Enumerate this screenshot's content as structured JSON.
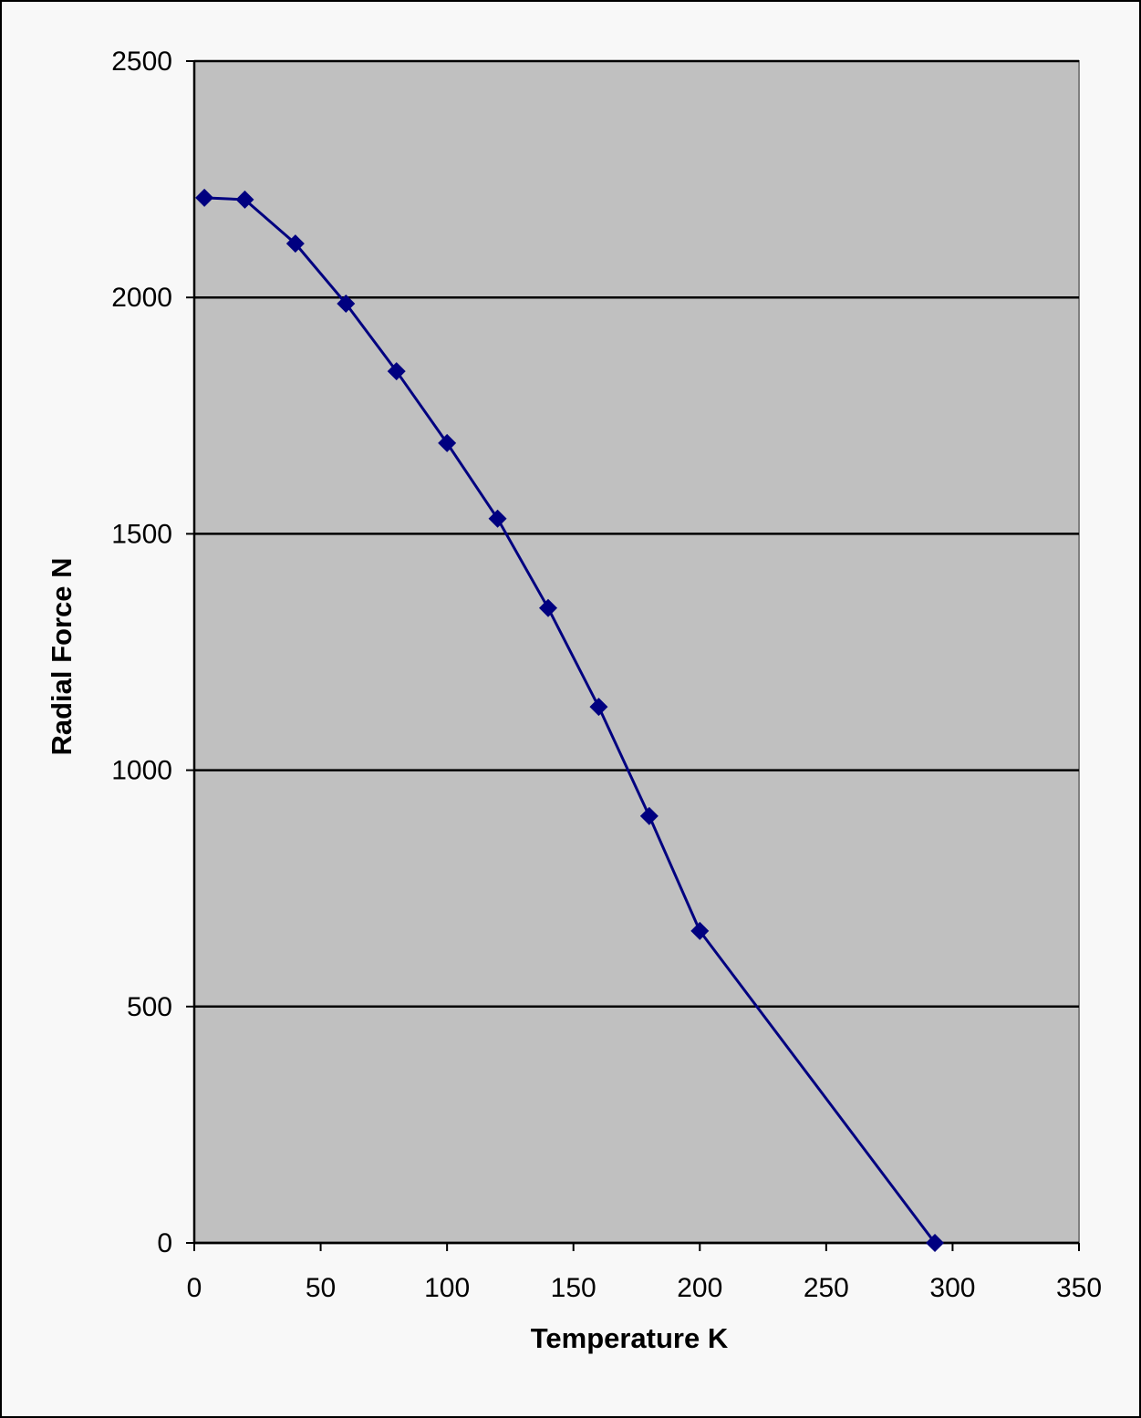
{
  "chart_data": {
    "type": "line",
    "x_label": "Temperature K",
    "y_label": "Radial Force N",
    "series": [
      {
        "name": "Radial Force",
        "color": "#000080",
        "x": [
          4,
          20,
          40,
          60,
          80,
          100,
          120,
          140,
          160,
          180,
          200,
          293
        ],
        "values": [
          2211,
          2207,
          2114,
          1987,
          1844,
          1692,
          1532,
          1343,
          1134,
          903,
          660,
          0
        ]
      }
    ],
    "xlim": [
      0,
      350
    ],
    "xticks": [
      0,
      50,
      100,
      150,
      200,
      250,
      300,
      350
    ],
    "ylim": [
      0,
      2500
    ],
    "yticks": [
      0,
      500,
      1000,
      1500,
      2000,
      2500
    ],
    "grid": true,
    "plot_background": "#c0c0c0"
  }
}
